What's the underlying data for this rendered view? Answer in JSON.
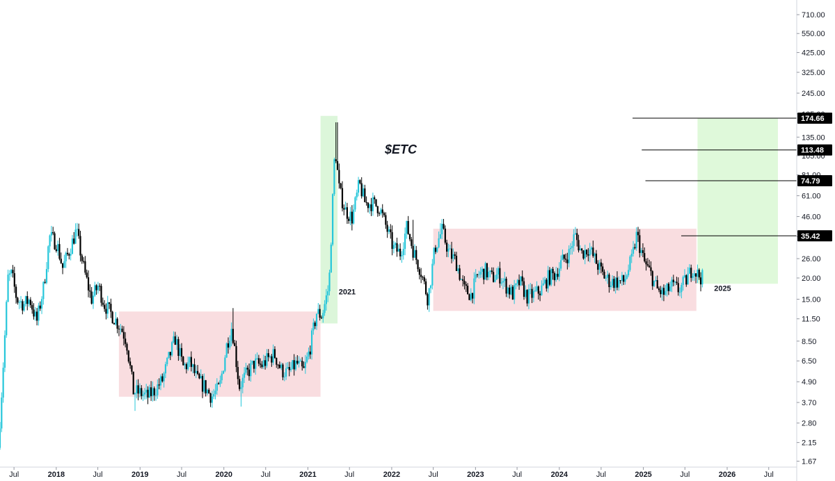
{
  "chart_data": {
    "type": "candlestick",
    "title": "$ETC",
    "y_scale": "log",
    "ylim": [
      1.6,
      850
    ],
    "y_ticks": [
      "710.00",
      "550.00",
      "425.00",
      "325.00",
      "245.00",
      "185.00",
      "135.00",
      "105.00",
      "81.00",
      "61.00",
      "46.00",
      "35.00",
      "26.00",
      "20.00",
      "15.00",
      "11.50",
      "8.50",
      "6.50",
      "4.90",
      "3.70",
      "2.80",
      "2.15",
      "1.67"
    ],
    "x_range": [
      "2017-05-01",
      "2026-10-31"
    ],
    "x_ticks": [
      {
        "label": "Jul",
        "date": "2017-07-01",
        "year": false
      },
      {
        "label": "2018",
        "date": "2018-01-01",
        "year": true
      },
      {
        "label": "Jul",
        "date": "2018-07-01",
        "year": false
      },
      {
        "label": "2019",
        "date": "2019-01-01",
        "year": true
      },
      {
        "label": "Jul",
        "date": "2019-07-01",
        "year": false
      },
      {
        "label": "2020",
        "date": "2020-01-01",
        "year": true
      },
      {
        "label": "Jul",
        "date": "2020-07-01",
        "year": false
      },
      {
        "label": "2021",
        "date": "2021-01-01",
        "year": true
      },
      {
        "label": "Jul",
        "date": "2021-07-01",
        "year": false
      },
      {
        "label": "2022",
        "date": "2022-01-01",
        "year": true
      },
      {
        "label": "Jul",
        "date": "2022-07-01",
        "year": false
      },
      {
        "label": "2023",
        "date": "2023-01-01",
        "year": true
      },
      {
        "label": "Jul",
        "date": "2023-07-01",
        "year": false
      },
      {
        "label": "2024",
        "date": "2024-01-01",
        "year": true
      },
      {
        "label": "Jul",
        "date": "2024-07-01",
        "year": false
      },
      {
        "label": "2025",
        "date": "2025-01-01",
        "year": true
      },
      {
        "label": "Jul",
        "date": "2025-07-01",
        "year": false
      },
      {
        "label": "2026",
        "date": "2026-01-01",
        "year": true
      },
      {
        "label": "Jul",
        "date": "2026-07-01",
        "year": false
      }
    ],
    "price_path": [
      [
        "2017-05-01",
        2.0
      ],
      [
        "2017-05-20",
        5.5
      ],
      [
        "2017-06-12",
        20
      ],
      [
        "2017-06-28",
        21
      ],
      [
        "2017-07-20",
        15
      ],
      [
        "2017-08-20",
        14
      ],
      [
        "2017-09-15",
        15
      ],
      [
        "2017-10-15",
        11
      ],
      [
        "2017-11-15",
        18
      ],
      [
        "2017-12-10",
        35
      ],
      [
        "2018-01-10",
        32
      ],
      [
        "2018-02-05",
        23
      ],
      [
        "2018-03-10",
        30
      ],
      [
        "2018-04-05",
        38
      ],
      [
        "2018-05-10",
        22
      ],
      [
        "2018-06-10",
        15
      ],
      [
        "2018-07-10",
        18
      ],
      [
        "2018-08-05",
        14
      ],
      [
        "2018-09-10",
        12
      ],
      [
        "2018-10-20",
        10
      ],
      [
        "2018-11-10",
        8.5
      ],
      [
        "2018-12-10",
        4.3
      ],
      [
        "2019-01-10",
        4.2
      ],
      [
        "2019-02-10",
        4.0
      ],
      [
        "2019-03-15",
        4.4
      ],
      [
        "2019-04-15",
        5.0
      ],
      [
        "2019-05-10",
        6.5
      ],
      [
        "2019-06-10",
        8.8
      ],
      [
        "2019-07-15",
        6.0
      ],
      [
        "2019-08-15",
        6.3
      ],
      [
        "2019-09-15",
        5.0
      ],
      [
        "2019-10-15",
        4.6
      ],
      [
        "2019-11-15",
        4.0
      ],
      [
        "2019-12-20",
        4.5
      ],
      [
        "2020-01-20",
        8.0
      ],
      [
        "2020-02-12",
        10.5
      ],
      [
        "2020-03-15",
        4.6
      ],
      [
        "2020-04-15",
        5.4
      ],
      [
        "2020-05-20",
        6.3
      ],
      [
        "2020-06-20",
        6.1
      ],
      [
        "2020-07-20",
        6.7
      ],
      [
        "2020-08-15",
        7.1
      ],
      [
        "2020-09-15",
        5.7
      ],
      [
        "2020-10-15",
        5.5
      ],
      [
        "2020-11-20",
        6.3
      ],
      [
        "2020-12-20",
        5.6
      ],
      [
        "2021-01-15",
        7.5
      ],
      [
        "2021-02-15",
        12.5
      ],
      [
        "2021-03-10",
        12.0
      ],
      [
        "2021-04-10",
        18
      ],
      [
        "2021-05-06",
        120
      ],
      [
        "2021-05-25",
        65
      ],
      [
        "2021-06-20",
        50
      ],
      [
        "2021-07-20",
        45
      ],
      [
        "2021-08-20",
        72
      ],
      [
        "2021-09-15",
        55
      ],
      [
        "2021-10-15",
        55
      ],
      [
        "2021-11-15",
        52
      ],
      [
        "2021-12-15",
        40
      ],
      [
        "2022-01-15",
        30
      ],
      [
        "2022-02-15",
        28
      ],
      [
        "2022-03-15",
        40
      ],
      [
        "2022-04-15",
        28
      ],
      [
        "2022-05-15",
        22
      ],
      [
        "2022-06-15",
        15
      ],
      [
        "2022-07-15",
        30
      ],
      [
        "2022-08-15",
        38
      ],
      [
        "2022-09-15",
        28
      ],
      [
        "2022-10-15",
        25
      ],
      [
        "2022-11-20",
        17
      ],
      [
        "2022-12-20",
        16
      ],
      [
        "2023-01-20",
        21
      ],
      [
        "2023-02-20",
        22
      ],
      [
        "2023-03-20",
        20
      ],
      [
        "2023-04-20",
        21
      ],
      [
        "2023-05-20",
        18
      ],
      [
        "2023-06-20",
        16
      ],
      [
        "2023-07-20",
        19
      ],
      [
        "2023-08-20",
        15.5
      ],
      [
        "2023-09-20",
        16
      ],
      [
        "2023-10-20",
        17
      ],
      [
        "2023-11-20",
        20
      ],
      [
        "2023-12-20",
        21
      ],
      [
        "2024-01-20",
        25
      ],
      [
        "2024-02-20",
        28
      ],
      [
        "2024-03-15",
        36
      ],
      [
        "2024-04-15",
        28
      ],
      [
        "2024-05-15",
        30
      ],
      [
        "2024-06-15",
        25
      ],
      [
        "2024-07-15",
        21
      ],
      [
        "2024-08-15",
        19
      ],
      [
        "2024-09-15",
        19
      ],
      [
        "2024-10-15",
        19
      ],
      [
        "2024-11-20",
        26
      ],
      [
        "2024-12-10",
        36
      ],
      [
        "2025-01-10",
        25
      ],
      [
        "2025-02-10",
        21
      ],
      [
        "2025-03-10",
        17
      ],
      [
        "2025-04-10",
        16
      ],
      [
        "2025-05-10",
        18
      ],
      [
        "2025-06-10",
        17
      ],
      [
        "2025-07-10",
        19
      ],
      [
        "2025-08-10",
        23
      ],
      [
        "2025-09-01",
        21
      ],
      [
        "2025-09-20",
        20
      ]
    ],
    "zones": [
      {
        "kind": "range",
        "color": "#f8d7da",
        "x0": "2018-10-01",
        "x1": "2021-02-25",
        "y0": 4.0,
        "y1": 12.7
      },
      {
        "kind": "range",
        "color": "#f8d7da",
        "x0": "2022-07-01",
        "x1": "2025-08-20",
        "y0": 12.8,
        "y1": 39.0
      },
      {
        "kind": "breakout",
        "color": "#d6f5d3",
        "x0": "2021-02-25",
        "x1": "2021-05-10",
        "y0": 10.8,
        "y1": 180
      },
      {
        "kind": "projection",
        "color": "#d9f8d4",
        "x0": "2025-08-25",
        "x1": "2026-08-10",
        "y0": 18.5,
        "y1": 174.66
      }
    ],
    "targets": [
      {
        "value": 174.66,
        "label": "174.66",
        "x0": "2024-11-15"
      },
      {
        "value": 113.48,
        "label": "113.48",
        "x0": "2024-12-25"
      },
      {
        "value": 74.79,
        "label": "74.79",
        "x0": "2025-01-10"
      },
      {
        "value": 35.42,
        "label": "35.42",
        "x0": "2025-06-15"
      }
    ],
    "annotations": [
      {
        "text": "2021",
        "x": "2021-05-15",
        "y": 16.0
      },
      {
        "text": "2025",
        "x": "2025-11-05",
        "y": 16.8
      }
    ],
    "colors": {
      "up": "#26c6da",
      "down": "#000000",
      "target_label_bg": "#000000"
    }
  }
}
